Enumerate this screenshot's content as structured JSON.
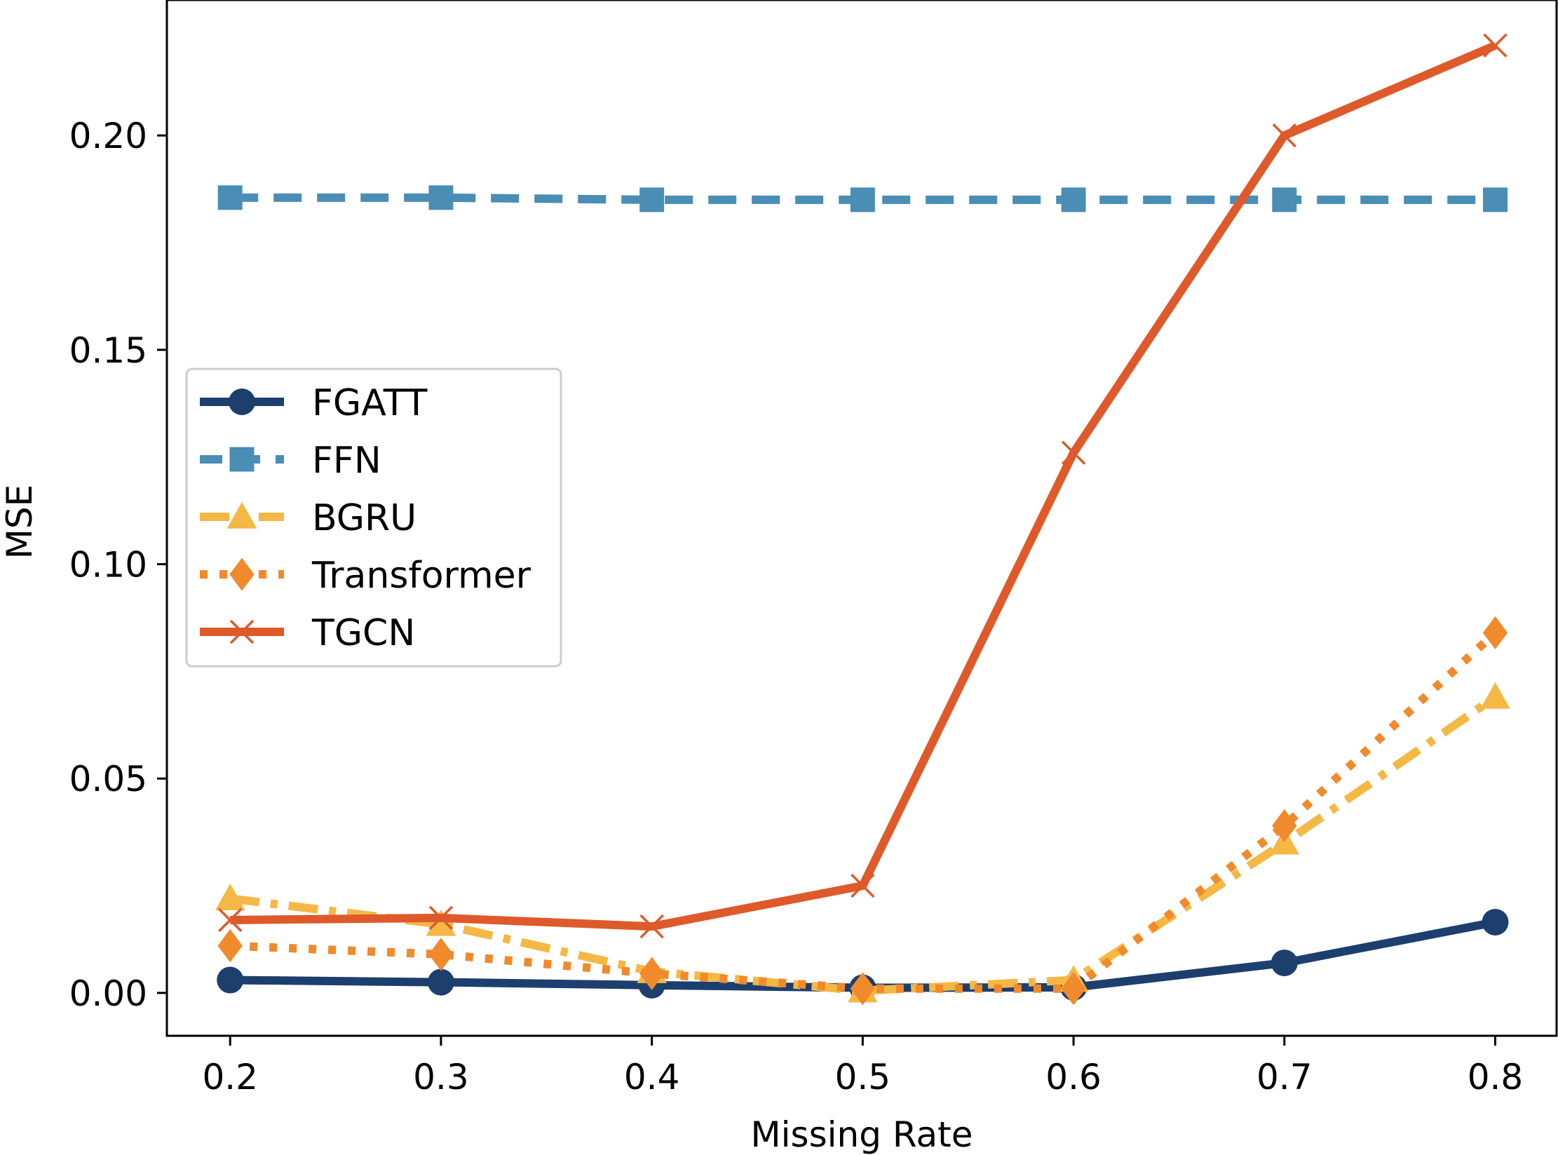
{
  "chart_data": {
    "type": "line",
    "title": "",
    "xlabel": "Missing Rate",
    "ylabel": "MSE",
    "x": [
      0.2,
      0.3,
      0.4,
      0.5,
      0.6,
      0.7,
      0.8
    ],
    "x_tick_labels": [
      "0.2",
      "0.3",
      "0.4",
      "0.5",
      "0.6",
      "0.7",
      "0.8"
    ],
    "y_ticks": [
      0.0,
      0.05,
      0.1,
      0.15,
      0.2
    ],
    "y_tick_labels": [
      "0.00",
      "0.05",
      "0.10",
      "0.15",
      "0.20"
    ],
    "xlim": [
      0.17,
      0.8291
    ],
    "ylim": [
      -0.01,
      0.2316
    ],
    "grid": false,
    "legend_position": "center-left",
    "series": [
      {
        "name": "FGATT",
        "color": "#1d3f6e",
        "marker": "circle",
        "line_style": "solid",
        "values": [
          0.003,
          0.0025,
          0.0018,
          0.0012,
          0.0013,
          0.007,
          0.0165
        ]
      },
      {
        "name": "FFN",
        "color": "#4a8db5",
        "marker": "square",
        "line_style": "dashed",
        "values": [
          0.1855,
          0.1855,
          0.185,
          0.185,
          0.185,
          0.185,
          0.185
        ]
      },
      {
        "name": "BGRU",
        "color": "#f5b845",
        "marker": "triangle",
        "line_style": "dashdot",
        "values": [
          0.022,
          0.016,
          0.005,
          0.0005,
          0.003,
          0.035,
          0.069
        ]
      },
      {
        "name": "Transformer",
        "color": "#f08a2c",
        "marker": "diamond",
        "line_style": "dotted",
        "values": [
          0.011,
          0.009,
          0.0045,
          0.001,
          0.001,
          0.039,
          0.084
        ]
      },
      {
        "name": "TGCN",
        "color": "#df5a2a",
        "marker": "x",
        "line_style": "solid",
        "values": [
          0.017,
          0.0175,
          0.0155,
          0.025,
          0.126,
          0.2,
          0.221
        ]
      }
    ]
  }
}
